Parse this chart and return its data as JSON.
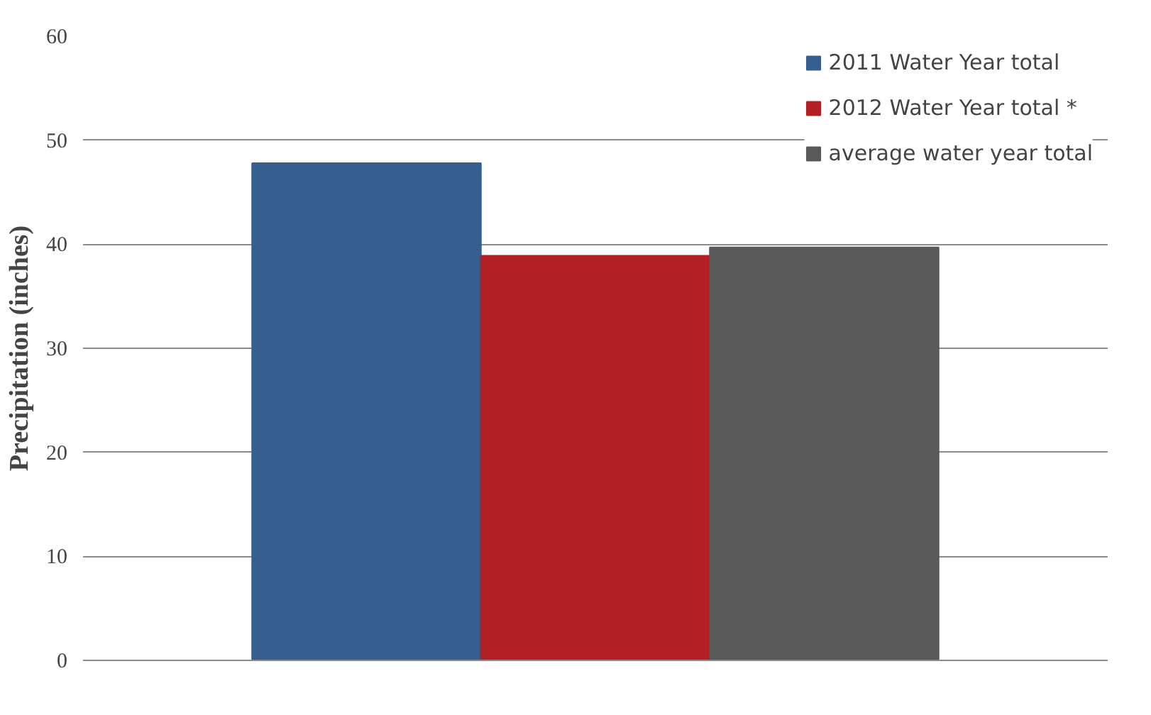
{
  "chart_data": {
    "type": "bar",
    "ylabel": "Precipitation (inches)",
    "categories": [
      null
    ],
    "series": [
      {
        "name": "2011 Water Year total",
        "color": "#365e8f",
        "values": [
          47.8
        ]
      },
      {
        "name": "2012 Water Year total *",
        "color": "#b22025",
        "values": [
          38.9
        ]
      },
      {
        "name": "average water year total",
        "color": "#595959",
        "values": [
          39.7
        ]
      }
    ],
    "ylim": [
      0,
      60
    ],
    "yticks": [
      0,
      10,
      20,
      30,
      40,
      50,
      60
    ],
    "grid": "y",
    "legend": "top right"
  }
}
